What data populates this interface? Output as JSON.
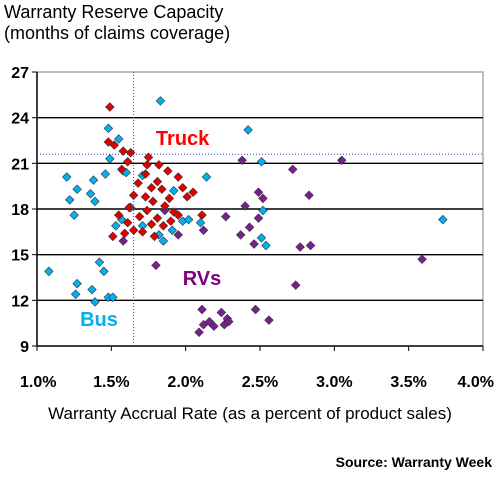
{
  "title_line1": "Warranty Reserve Capacity",
  "title_line2": "(months of claims coverage)",
  "source": "Source: Warranty Week",
  "chart_data": {
    "type": "scatter",
    "xlabel": "Warranty Accrual Rate (as a percent of product sales)",
    "ylabel": "",
    "xlim": [
      1.0,
      4.0
    ],
    "ylim": [
      9,
      27
    ],
    "x_ticks": [
      1.0,
      1.5,
      2.0,
      2.5,
      3.0,
      3.5,
      4.0
    ],
    "x_tick_labels": [
      "1.0%",
      "1.5%",
      "2.0%",
      "2.5%",
      "3.0%",
      "3.5%",
      "4.0%"
    ],
    "y_ticks": [
      9,
      12,
      15,
      18,
      21,
      24,
      27
    ],
    "y_tick_labels": [
      "9",
      "12",
      "15",
      "18",
      "21",
      "24",
      "27"
    ],
    "grid": "horizontal lines at y tick marks",
    "reference_lines": {
      "x": 1.65,
      "y": 21.6
    },
    "annotations": [
      {
        "text": "Truck",
        "color": "#ff0000",
        "x": 1.8,
        "y": 22.2
      },
      {
        "text": "RVs",
        "color": "#800080",
        "x": 1.98,
        "y": 13.0
      },
      {
        "text": "Bus",
        "color": "#00b0f0",
        "x": 1.29,
        "y": 10.3
      }
    ],
    "series": [
      {
        "name": "Truck",
        "color": "#e00000",
        "points": [
          [
            1.49,
            24.7
          ],
          [
            1.48,
            22.4
          ],
          [
            1.52,
            22.2
          ],
          [
            1.58,
            21.8
          ],
          [
            1.63,
            21.7
          ],
          [
            1.61,
            21.1
          ],
          [
            1.75,
            21.4
          ],
          [
            1.74,
            20.9
          ],
          [
            1.82,
            20.9
          ],
          [
            1.57,
            20.6
          ],
          [
            1.88,
            20.5
          ],
          [
            1.73,
            20.3
          ],
          [
            1.95,
            20.1
          ],
          [
            1.68,
            19.7
          ],
          [
            1.81,
            19.8
          ],
          [
            1.77,
            19.4
          ],
          [
            1.84,
            19.3
          ],
          [
            1.98,
            19.4
          ],
          [
            2.05,
            19.1
          ],
          [
            1.65,
            18.9
          ],
          [
            1.73,
            18.8
          ],
          [
            1.89,
            18.7
          ],
          [
            2.01,
            18.8
          ],
          [
            1.78,
            18.5
          ],
          [
            1.86,
            18.2
          ],
          [
            1.62,
            18.1
          ],
          [
            1.74,
            17.9
          ],
          [
            1.92,
            17.8
          ],
          [
            1.55,
            17.6
          ],
          [
            1.69,
            17.5
          ],
          [
            1.81,
            17.4
          ],
          [
            1.95,
            17.6
          ],
          [
            1.61,
            17.1
          ],
          [
            1.77,
            17.0
          ],
          [
            1.85,
            16.9
          ],
          [
            1.65,
            16.6
          ],
          [
            1.71,
            16.5
          ],
          [
            1.59,
            16.4
          ],
          [
            1.51,
            16.2
          ],
          [
            2.11,
            17.6
          ],
          [
            1.9,
            17.2
          ],
          [
            1.79,
            16.2
          ]
        ]
      },
      {
        "name": "RVs",
        "color": "#7a1f90",
        "points": [
          [
            3.05,
            21.2
          ],
          [
            2.38,
            21.2
          ],
          [
            2.49,
            19.1
          ],
          [
            2.52,
            18.7
          ],
          [
            2.83,
            18.9
          ],
          [
            2.72,
            20.6
          ],
          [
            2.4,
            18.2
          ],
          [
            2.49,
            17.4
          ],
          [
            2.43,
            16.8
          ],
          [
            2.37,
            16.3
          ],
          [
            2.46,
            15.7
          ],
          [
            2.77,
            15.5
          ],
          [
            2.84,
            15.6
          ],
          [
            2.12,
            16.6
          ],
          [
            1.8,
            14.3
          ],
          [
            3.59,
            14.7
          ],
          [
            2.74,
            13.0
          ],
          [
            2.24,
            11.2
          ],
          [
            2.28,
            10.8
          ],
          [
            2.11,
            11.4
          ],
          [
            2.12,
            10.4
          ],
          [
            2.16,
            10.6
          ],
          [
            2.19,
            10.3
          ],
          [
            2.26,
            10.4
          ],
          [
            2.29,
            10.6
          ],
          [
            2.47,
            11.4
          ],
          [
            2.56,
            10.7
          ],
          [
            2.09,
            9.9
          ],
          [
            1.58,
            15.9
          ],
          [
            1.86,
            17.9
          ],
          [
            1.95,
            16.3
          ],
          [
            2.27,
            17.5
          ]
        ]
      },
      {
        "name": "Bus",
        "color": "#00b0f0",
        "points": [
          [
            1.83,
            25.1
          ],
          [
            1.48,
            23.3
          ],
          [
            2.42,
            23.2
          ],
          [
            1.55,
            22.6
          ],
          [
            1.49,
            21.3
          ],
          [
            1.46,
            20.3
          ],
          [
            1.2,
            20.1
          ],
          [
            1.38,
            19.9
          ],
          [
            1.27,
            19.3
          ],
          [
            1.36,
            19.0
          ],
          [
            1.58,
            20.5
          ],
          [
            1.71,
            20.2
          ],
          [
            1.22,
            18.6
          ],
          [
            1.39,
            18.5
          ],
          [
            1.63,
            18.1
          ],
          [
            1.57,
            17.3
          ],
          [
            1.25,
            17.6
          ],
          [
            1.53,
            16.9
          ],
          [
            1.71,
            16.9
          ],
          [
            1.82,
            16.3
          ],
          [
            1.85,
            15.9
          ],
          [
            1.91,
            16.6
          ],
          [
            1.98,
            17.2
          ],
          [
            2.02,
            17.3
          ],
          [
            2.1,
            17.1
          ],
          [
            2.52,
            17.9
          ],
          [
            2.51,
            16.1
          ],
          [
            2.54,
            15.6
          ],
          [
            3.73,
            17.3
          ],
          [
            1.08,
            13.9
          ],
          [
            1.27,
            13.1
          ],
          [
            1.42,
            14.5
          ],
          [
            1.45,
            13.9
          ],
          [
            1.37,
            12.7
          ],
          [
            1.26,
            12.4
          ],
          [
            1.48,
            12.2
          ],
          [
            1.51,
            12.2
          ],
          [
            1.39,
            11.9
          ],
          [
            2.14,
            20.1
          ],
          [
            2.51,
            21.1
          ],
          [
            1.6,
            20.4
          ],
          [
            1.92,
            19.2
          ]
        ]
      }
    ]
  }
}
